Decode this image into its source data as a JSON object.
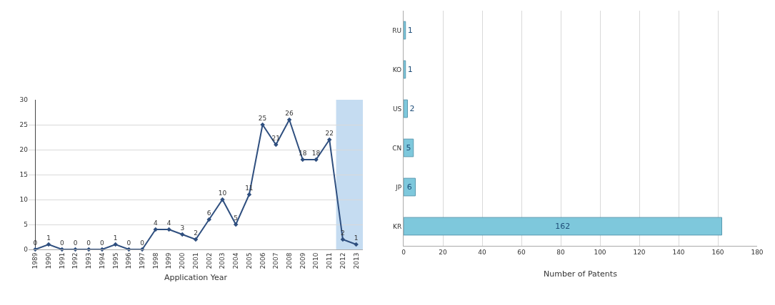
{
  "chart_data": [
    {
      "type": "line",
      "xlabel": "Application Year",
      "categories": [
        "1989",
        "1990",
        "1991",
        "1992",
        "1993",
        "1994",
        "1995",
        "1996",
        "1997",
        "1998",
        "1999",
        "2000",
        "2001",
        "2002",
        "2003",
        "2004",
        "2005",
        "2006",
        "2007",
        "2008",
        "2009",
        "2010",
        "2011",
        "2012",
        "2013"
      ],
      "series": [
        {
          "color": "#2f4f7f",
          "values": [
            0,
            1,
            0,
            0,
            0,
            0,
            1,
            0,
            0,
            4,
            4,
            3,
            2,
            6,
            10,
            5,
            11,
            25,
            21,
            26,
            18,
            18,
            22,
            2,
            1
          ]
        }
      ],
      "ylim": [
        0,
        30
      ],
      "yticks": [
        0,
        5,
        10,
        15,
        20,
        25,
        30
      ],
      "grid": "y",
      "data_labels": true,
      "marker": "diamond",
      "line_style": "solid",
      "bands": [
        {
          "axis": "x",
          "from": "2012",
          "to": "2013",
          "color": "#9fc5e8"
        }
      ]
    },
    {
      "type": "bar",
      "orientation": "horizontal",
      "xlabel": "Number of Patents",
      "categories": [
        "RU",
        "KO",
        "US",
        "CN",
        "JP",
        "KR"
      ],
      "values": [
        1,
        1,
        2,
        5,
        6,
        162
      ],
      "color": "#7ec8dc",
      "xlim": [
        0,
        180
      ],
      "xticks": [
        0,
        20,
        40,
        60,
        80,
        100,
        120,
        140,
        160,
        180
      ],
      "grid": "x",
      "data_labels": true
    }
  ]
}
